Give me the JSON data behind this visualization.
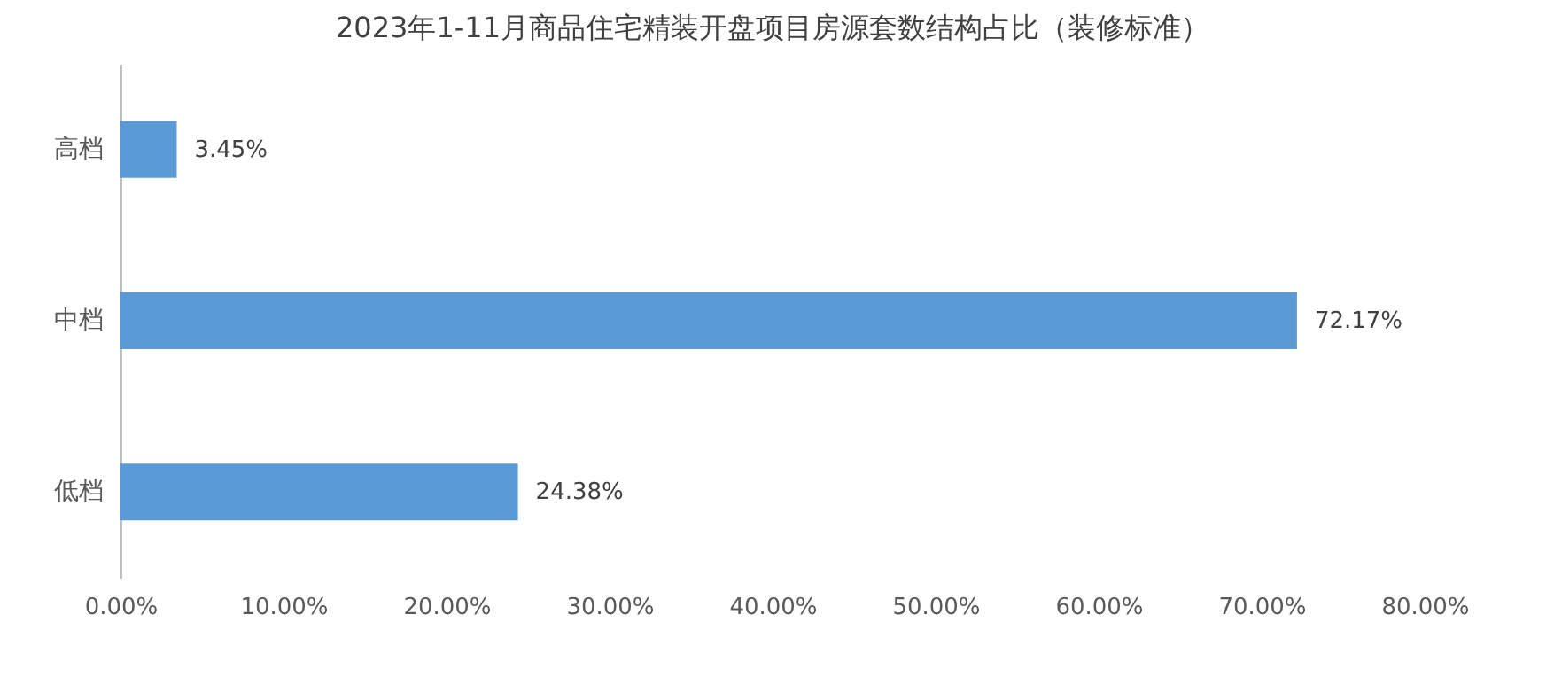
{
  "chart_data": {
    "type": "bar",
    "orientation": "horizontal",
    "title": "2023年1-11月商品住宅精装开盘项目房源套数结构占比（装修标准）",
    "categories": [
      "高档",
      "中档",
      "低档"
    ],
    "values": [
      3.45,
      72.17,
      24.38
    ],
    "value_labels": [
      "3.45%",
      "72.17%",
      "24.38%"
    ],
    "color": "#5b9bd5",
    "xlim": [
      0,
      80
    ],
    "xticks": [
      {
        "value": 0,
        "label": "0.00%"
      },
      {
        "value": 10,
        "label": "10.00%"
      },
      {
        "value": 20,
        "label": "20.00%"
      },
      {
        "value": 30,
        "label": "30.00%"
      },
      {
        "value": 40,
        "label": "40.00%"
      },
      {
        "value": 50,
        "label": "50.00%"
      },
      {
        "value": 60,
        "label": "60.00%"
      },
      {
        "value": 70,
        "label": "70.00%"
      },
      {
        "value": 80,
        "label": "80.00%"
      }
    ],
    "grid": false
  }
}
